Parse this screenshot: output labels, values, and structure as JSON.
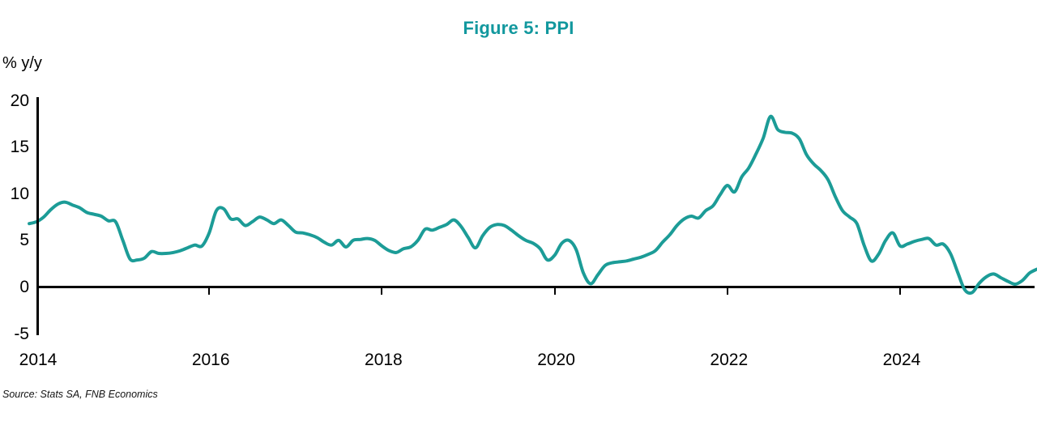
{
  "figure": {
    "title": "Figure 5: PPI",
    "y_axis_unit_label": "% y/y",
    "source": "Source: Stats SA, FNB Economics"
  },
  "colors": {
    "title_teal": "#12989E",
    "line_teal": "#1C9C97",
    "axis_black": "#000000"
  },
  "chart_data": {
    "type": "line",
    "title": "Figure 5: PPI",
    "xlabel": "",
    "ylabel": "% y/y",
    "ylim": [
      -5,
      20
    ],
    "yticks": [
      20,
      15,
      10,
      5,
      0,
      -5
    ],
    "xticks": [
      2014,
      2016,
      2018,
      2020,
      2022,
      2024
    ],
    "grid": false,
    "legend_position": "none",
    "x_freq": "monthly",
    "series": [
      {
        "name": "PPI % y/y",
        "start": "2013-12",
        "values": [
          6.8,
          7.0,
          7.5,
          8.3,
          8.9,
          9.1,
          8.8,
          8.5,
          8.0,
          7.8,
          7.6,
          7.1,
          7.0,
          5.0,
          3.0,
          2.9,
          3.1,
          3.8,
          3.6,
          3.6,
          3.7,
          3.9,
          4.2,
          4.5,
          4.4,
          5.8,
          8.2,
          8.4,
          7.3,
          7.3,
          6.6,
          7.0,
          7.5,
          7.2,
          6.8,
          7.2,
          6.6,
          5.9,
          5.8,
          5.6,
          5.3,
          4.8,
          4.5,
          5.0,
          4.3,
          5.0,
          5.1,
          5.2,
          5.0,
          4.4,
          3.9,
          3.7,
          4.1,
          4.3,
          5.0,
          6.2,
          6.1,
          6.4,
          6.7,
          7.2,
          6.5,
          5.3,
          4.2,
          5.5,
          6.4,
          6.7,
          6.6,
          6.1,
          5.5,
          5.0,
          4.7,
          4.1,
          2.9,
          3.4,
          4.7,
          5.0,
          4.0,
          1.5,
          0.35,
          1.3,
          2.3,
          2.6,
          2.7,
          2.8,
          3.0,
          3.2,
          3.5,
          3.9,
          4.8,
          5.6,
          6.6,
          7.3,
          7.6,
          7.4,
          8.2,
          8.7,
          9.9,
          10.9,
          10.2,
          11.8,
          12.8,
          14.3,
          16.0,
          18.3,
          16.9,
          16.6,
          16.5,
          15.9,
          14.2,
          13.2,
          12.5,
          11.5,
          9.7,
          8.2,
          7.5,
          6.8,
          4.5,
          2.8,
          3.5,
          5.0,
          5.8,
          4.4,
          4.6,
          4.9,
          5.1,
          5.2,
          4.5,
          4.6,
          3.6,
          1.6,
          -0.3,
          -0.6,
          0.4,
          1.1,
          1.4,
          1.0,
          0.6,
          0.3,
          0.7,
          1.5,
          1.9
        ]
      }
    ]
  }
}
